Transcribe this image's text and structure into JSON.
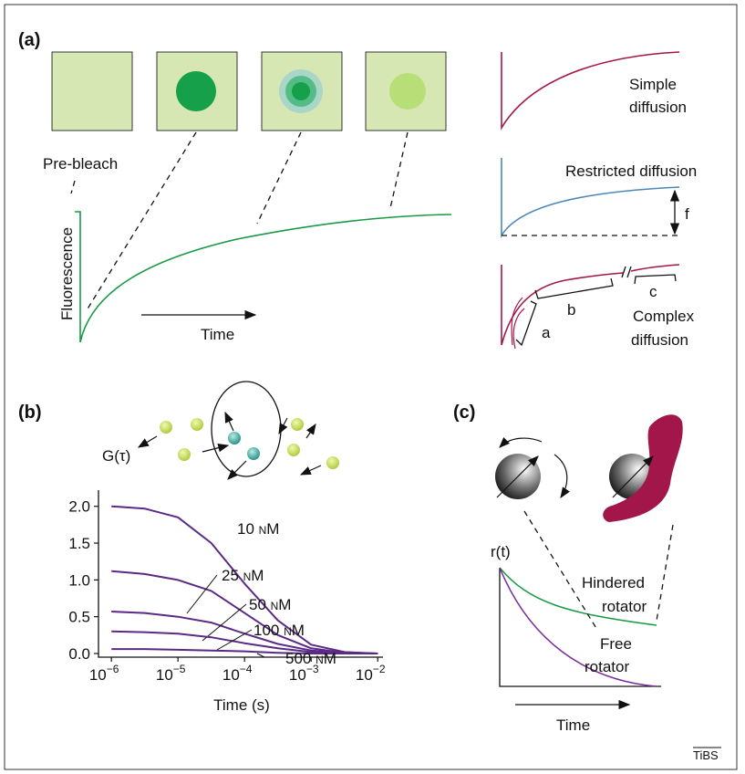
{
  "panel_a": {
    "label": "(a)",
    "prebleach": "Pre-bleach",
    "y_label": "Fluorescence",
    "x_label": "Time",
    "simple_1": "Simple",
    "simple_2": "diffusion",
    "restricted": "Restricted diffusion",
    "f": "f",
    "complex_1": "Complex",
    "complex_2": "diffusion",
    "a": "a",
    "b": "b",
    "c": "c"
  },
  "panel_b": {
    "label": "(b)"
  },
  "chart_data": {
    "type": "line",
    "y_label": "G(τ)",
    "x_label": "Time (s)",
    "log_x": true,
    "xlim": [
      6.4e-07,
      0.012
    ],
    "ylim": [
      -0.05,
      2.22
    ],
    "xticks": [
      {
        "value": 1e-06,
        "label": "10",
        "exponent": "−6"
      },
      {
        "value": 1e-05,
        "label": "10",
        "exponent": "−5"
      },
      {
        "value": 0.0001,
        "label": "10",
        "exponent": "−4"
      },
      {
        "value": 0.001,
        "label": "10",
        "exponent": "−3"
      },
      {
        "value": 0.01,
        "label": "10",
        "exponent": "−2"
      }
    ],
    "yticks": [
      {
        "value": 0,
        "label": "0.0"
      },
      {
        "value": 0.5,
        "label": "0.5"
      },
      {
        "value": 1,
        "label": "1.0"
      },
      {
        "value": 1.5,
        "label": "1.5"
      },
      {
        "value": 2,
        "label": "2.0"
      }
    ],
    "x": [
      1e-06,
      3.16e-06,
      1e-05,
      3.16e-05,
      0.0001,
      0.000316,
      0.001,
      0.00316,
      0.01
    ],
    "series": [
      {
        "name": "10 nM",
        "color": "#5b2a86",
        "values": [
          2.0,
          1.97,
          1.85,
          1.5,
          0.95,
          0.45,
          0.12,
          0.02,
          0.0
        ]
      },
      {
        "name": "25 nM",
        "color": "#5b2a86",
        "values": [
          1.12,
          1.08,
          1.0,
          0.85,
          0.55,
          0.25,
          0.07,
          0.01,
          0.0
        ]
      },
      {
        "name": "50 nM",
        "color": "#5b2a86",
        "values": [
          0.57,
          0.55,
          0.5,
          0.42,
          0.27,
          0.13,
          0.04,
          0.01,
          0.0
        ]
      },
      {
        "name": "100 nM",
        "color": "#5b2a86",
        "values": [
          0.3,
          0.29,
          0.27,
          0.22,
          0.14,
          0.07,
          0.02,
          0.0,
          0.0
        ]
      },
      {
        "name": "500 nM",
        "color": "#5b2a86",
        "values": [
          0.06,
          0.06,
          0.05,
          0.04,
          0.03,
          0.01,
          0.0,
          0.0,
          0.0
        ]
      }
    ]
  },
  "panel_c": {
    "label": "(c)",
    "y_label": "r(t)",
    "hindered_1": "Hindered",
    "hindered_2": "rotator",
    "free_1": "Free",
    "free_2": "rotator",
    "x_label": "Time"
  },
  "footer": "TiBS"
}
